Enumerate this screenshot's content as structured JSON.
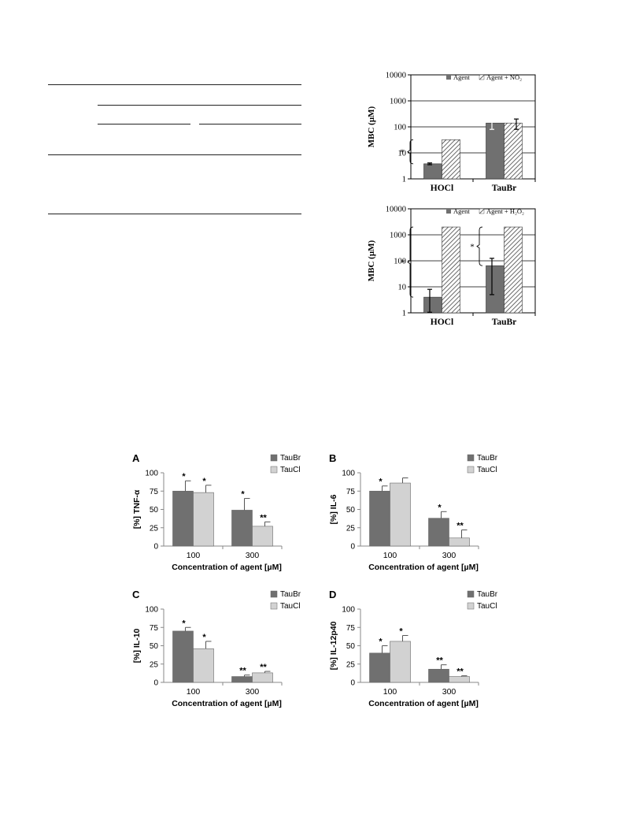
{
  "colors": {
    "dark_bar": "#707070",
    "light_bar": "#d2d2d2",
    "hatch": "#444444",
    "error_bar": "#000000"
  },
  "chart_data": [
    {
      "id": "mbc-no2",
      "type": "bar",
      "scale": "log",
      "ylabel": "MBC (µM)",
      "ylim": [
        1,
        10000
      ],
      "yticks": [
        "1",
        "10",
        "100",
        "1000",
        "10000"
      ],
      "categories": [
        "HOCl",
        "TauBr"
      ],
      "legend": [
        "Agent",
        "Agent + NO₂"
      ],
      "legend_position": "top-right",
      "grid": true,
      "series": [
        {
          "name": "Agent",
          "values": [
            3.8,
            140
          ],
          "errors": [
            0.3,
            60
          ]
        },
        {
          "name": "Agent + NO₂",
          "values": [
            32,
            140
          ],
          "errors": [
            0,
            60
          ]
        }
      ],
      "annotations": [
        "*"
      ]
    },
    {
      "id": "mbc-h2o2",
      "type": "bar",
      "scale": "log",
      "ylabel": "MBC (µM)",
      "ylim": [
        1,
        10000
      ],
      "yticks": [
        "1",
        "10",
        "100",
        "1000",
        "10000"
      ],
      "categories": [
        "HOCl",
        "TauBr"
      ],
      "legend": [
        "Agent",
        "Agent + H₂O₂"
      ],
      "legend_position": "top-right",
      "grid": true,
      "series": [
        {
          "name": "Agent",
          "values": [
            4,
            65
          ],
          "errors": [
            4,
            60
          ]
        },
        {
          "name": "Agent + H₂O₂",
          "values": [
            2000,
            2000
          ],
          "errors": [
            0,
            0
          ]
        }
      ],
      "annotations": [
        "*",
        "*"
      ]
    },
    {
      "id": "panel-a",
      "type": "bar",
      "panel_letter": "A",
      "ylabel": "[%] TNF-α",
      "xlabel": "Concentration of agent [µM]",
      "categories": [
        "100",
        "300"
      ],
      "ylim": [
        0,
        100
      ],
      "yticks": [
        "0",
        "25",
        "50",
        "75",
        "100"
      ],
      "legend": [
        "TauBr",
        "TauCl"
      ],
      "legend_position": "top-right",
      "series": [
        {
          "name": "TauBr",
          "values": [
            75,
            49
          ],
          "errors": [
            14,
            16
          ],
          "marks": [
            "*",
            "*"
          ]
        },
        {
          "name": "TauCl",
          "values": [
            73,
            27
          ],
          "errors": [
            10,
            6
          ],
          "marks": [
            "*",
            "**"
          ]
        }
      ]
    },
    {
      "id": "panel-b",
      "type": "bar",
      "panel_letter": "B",
      "ylabel": "[%] IL-6",
      "xlabel": "Concentration of agent [µM]",
      "categories": [
        "100",
        "300"
      ],
      "ylim": [
        0,
        100
      ],
      "yticks": [
        "0",
        "25",
        "50",
        "75",
        "100"
      ],
      "legend": [
        "TauBr",
        "TauCl"
      ],
      "legend_position": "top-right",
      "series": [
        {
          "name": "TauBr",
          "values": [
            75,
            38
          ],
          "errors": [
            7,
            9
          ],
          "marks": [
            "*",
            "*"
          ]
        },
        {
          "name": "TauCl",
          "values": [
            86,
            11
          ],
          "errors": [
            7,
            11
          ],
          "marks": [
            "",
            "**"
          ]
        }
      ]
    },
    {
      "id": "panel-c",
      "type": "bar",
      "panel_letter": "C",
      "ylabel": "[%] IL-10",
      "xlabel": "Concentration of agent [µM]",
      "categories": [
        "100",
        "300"
      ],
      "ylim": [
        0,
        100
      ],
      "yticks": [
        "0",
        "25",
        "50",
        "75",
        "100"
      ],
      "legend": [
        "TauBr",
        "TauCl"
      ],
      "legend_position": "top-right",
      "series": [
        {
          "name": "TauBr",
          "values": [
            70,
            8
          ],
          "errors": [
            5,
            2
          ],
          "marks": [
            "*",
            "**"
          ]
        },
        {
          "name": "TauCl",
          "values": [
            46,
            13
          ],
          "errors": [
            10,
            2
          ],
          "marks": [
            "*",
            "**"
          ]
        }
      ]
    },
    {
      "id": "panel-d",
      "type": "bar",
      "panel_letter": "D",
      "ylabel": "[%]  IL-12p40",
      "xlabel": "Concentration of agent [µM]",
      "categories": [
        "100",
        "300"
      ],
      "ylim": [
        0,
        100
      ],
      "yticks": [
        "0",
        "25",
        "50",
        "75",
        "100"
      ],
      "legend": [
        "TauBr",
        "TauCl"
      ],
      "legend_position": "top-right",
      "series": [
        {
          "name": "TauBr",
          "values": [
            40,
            18
          ],
          "errors": [
            10,
            6
          ],
          "marks": [
            "*",
            "**"
          ]
        },
        {
          "name": "TauCl",
          "values": [
            56,
            8
          ],
          "errors": [
            8,
            1
          ],
          "marks": [
            "*",
            "**"
          ]
        }
      ]
    }
  ]
}
